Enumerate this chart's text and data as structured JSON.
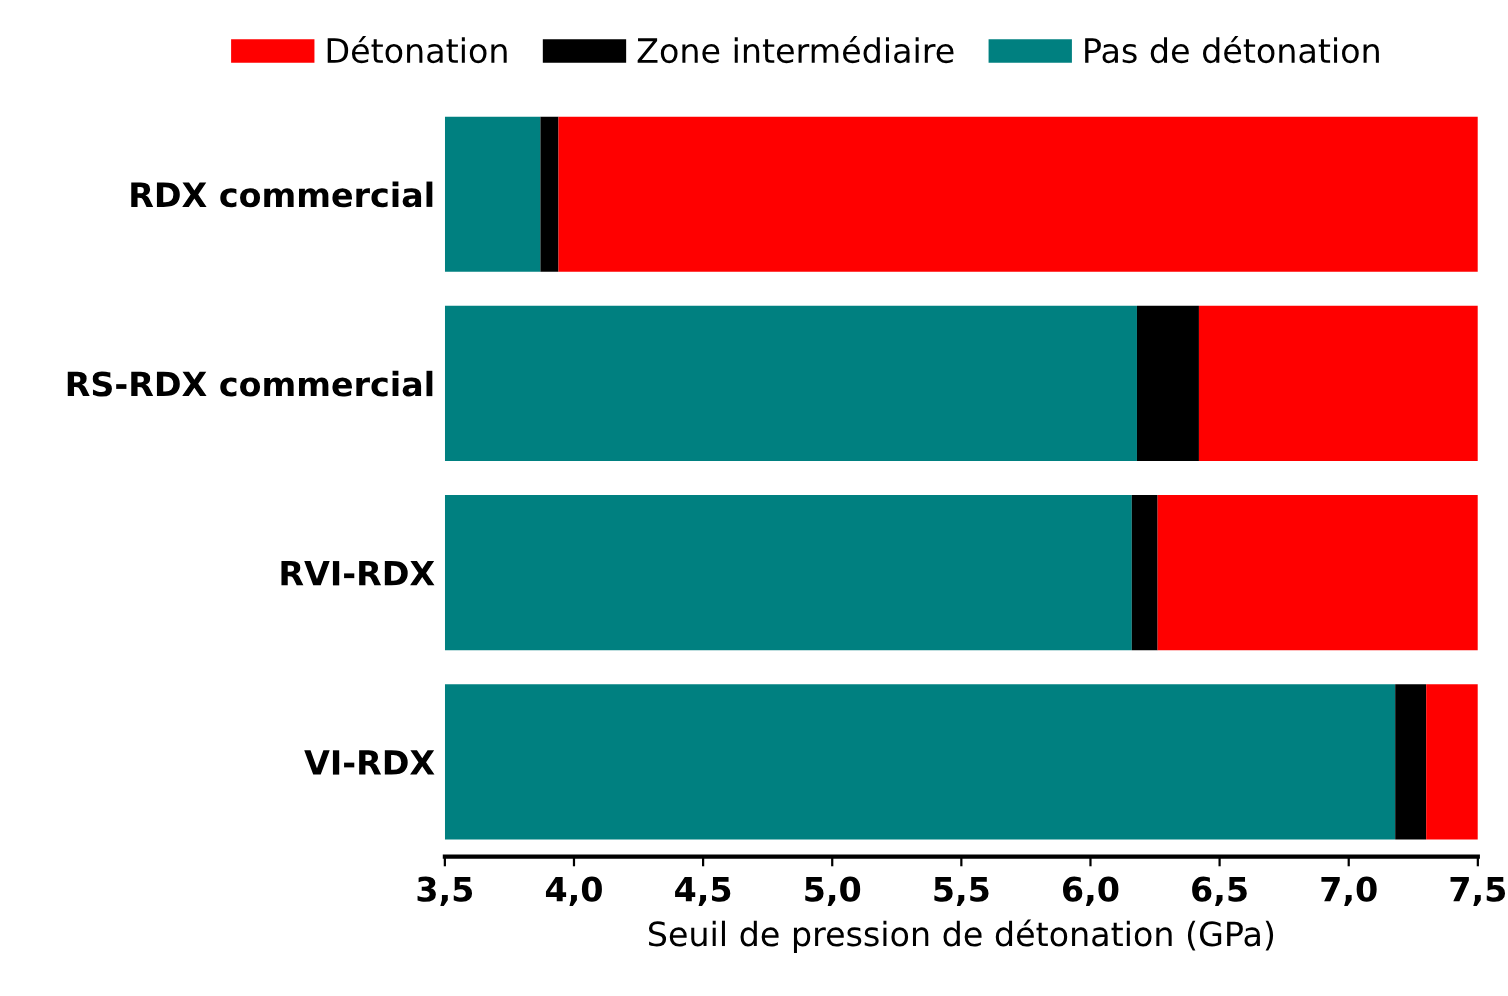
{
  "chart_data": {
    "type": "bar",
    "orientation": "horizontal",
    "xlabel": "Seuil de pression de détonation (GPa)",
    "categories": [
      "RDX commercial",
      "RS-RDX commercial",
      "RVI-RDX",
      "VI-RDX"
    ],
    "series": [
      {
        "name": "Pas de détonation",
        "color": "#008080",
        "base": [
          3.5,
          3.5,
          3.5,
          3.5
        ],
        "values": [
          0.37,
          2.68,
          2.66,
          3.68
        ]
      },
      {
        "name": "Zone intermédiaire",
        "color": "#000000",
        "base": [
          3.87,
          6.18,
          6.16,
          7.18
        ],
        "values": [
          0.07,
          0.24,
          0.1,
          0.12
        ]
      },
      {
        "name": "Détonation",
        "color": "#ff0000",
        "base": [
          3.94,
          6.42,
          6.26,
          7.3
        ],
        "values": [
          3.56,
          1.08,
          1.24,
          0.2
        ]
      }
    ],
    "xlim": [
      3.5,
      7.5
    ],
    "xticks": [
      {
        "value": 3.5,
        "label": "3,5"
      },
      {
        "value": 4,
        "label": "4,0"
      },
      {
        "value": 4.5,
        "label": "4,5"
      },
      {
        "value": 5,
        "label": "5,0"
      },
      {
        "value": 5.5,
        "label": "5,5"
      },
      {
        "value": 6,
        "label": "6,0"
      },
      {
        "value": 6.5,
        "label": "6,5"
      },
      {
        "value": 7,
        "label": "7,0"
      },
      {
        "value": 7.5,
        "label": "7,5"
      }
    ],
    "legend": "top",
    "grid": false
  }
}
